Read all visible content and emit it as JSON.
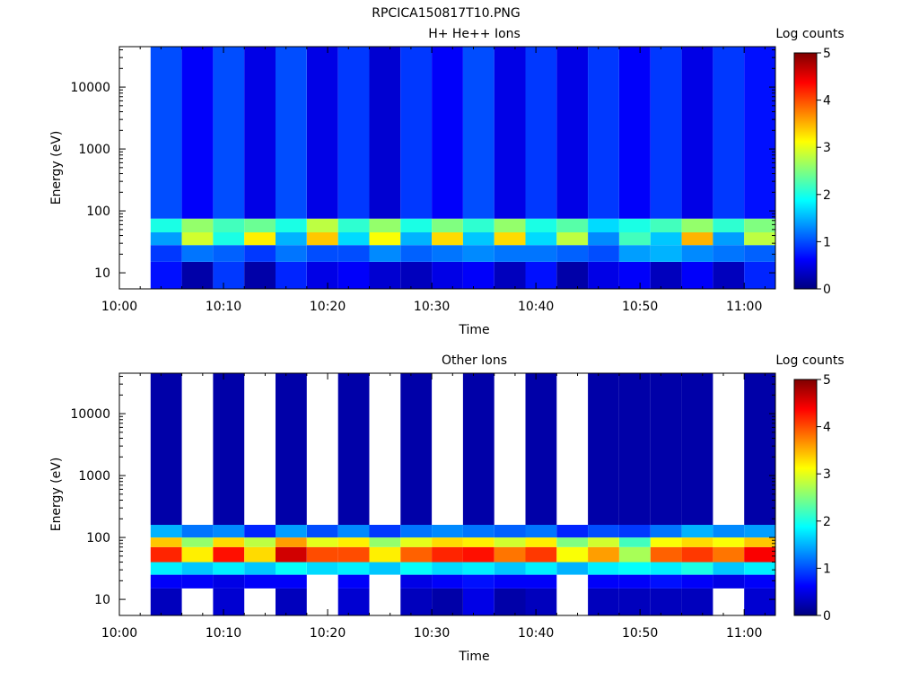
{
  "figure": {
    "title": "RPCICA150817T10.PNG"
  },
  "colors": {
    "background": "#ffffff",
    "axis": "#000000",
    "missing": "#ffffff"
  },
  "colorbar_ticks": [
    "0",
    "1",
    "2",
    "3",
    "4",
    "5"
  ],
  "chart_data": [
    {
      "type": "heatmap",
      "title": "H+ He++ Ions",
      "xlabel": "Time",
      "ylabel": "Energy (eV)",
      "colorbar_label": "Log counts",
      "y_scale": "log",
      "ylim": [
        5.5,
        45000
      ],
      "xlim": [
        "10:00",
        "11:03"
      ],
      "x_ticks": [
        "10:00",
        "10:10",
        "10:20",
        "10:30",
        "10:40",
        "10:50",
        "11:00"
      ],
      "y_ticks": [
        "10",
        "100",
        "1000",
        "10000"
      ],
      "clim": [
        0,
        5
      ],
      "colormap": "jet",
      "time_bins": [
        "10:03",
        "10:06",
        "10:09",
        "10:12",
        "10:15",
        "10:18",
        "10:21",
        "10:24",
        "10:27",
        "10:30",
        "10:33",
        "10:36",
        "10:39",
        "10:42",
        "10:45",
        "10:48",
        "10:51",
        "10:54",
        "10:57",
        "11:00",
        "11:03"
      ],
      "energy_bands_ev": [
        {
          "range": [
            5.5,
            15
          ],
          "values": [
            0.7,
            0.2,
            0.9,
            0.2,
            0.8,
            0.5,
            0.6,
            0.4,
            0.3,
            0.5,
            0.6,
            0.3,
            0.7,
            0.2,
            0.5,
            0.6,
            0.3,
            0.6,
            0.3,
            0.8
          ]
        },
        {
          "range": [
            15,
            28
          ],
          "values": [
            0.9,
            1.2,
            1.1,
            0.9,
            1.2,
            1.0,
            1.0,
            1.3,
            1.1,
            1.2,
            1.3,
            1.2,
            1.2,
            1.1,
            1.0,
            1.4,
            1.5,
            1.3,
            1.2,
            1.1
          ]
        },
        {
          "range": [
            28,
            45
          ],
          "values": [
            1.4,
            2.9,
            2.0,
            3.2,
            1.5,
            3.4,
            1.7,
            3.1,
            1.5,
            3.3,
            1.6,
            3.3,
            1.7,
            2.8,
            1.3,
            2.2,
            1.6,
            3.5,
            1.4,
            2.8
          ]
        },
        {
          "range": [
            45,
            75
          ],
          "values": [
            2.0,
            2.6,
            2.2,
            2.4,
            2.0,
            2.8,
            2.1,
            2.6,
            2.0,
            2.5,
            2.1,
            2.6,
            2.0,
            2.3,
            1.7,
            2.0,
            2.2,
            2.6,
            2.1,
            2.5
          ]
        },
        {
          "range": [
            75,
            45000
          ],
          "values": [
            1.0,
            0.6,
            1.0,
            0.5,
            1.0,
            0.5,
            0.9,
            0.4,
            0.9,
            0.6,
            1.0,
            0.5,
            0.9,
            0.5,
            0.9,
            0.6,
            0.9,
            0.5,
            0.9,
            0.7
          ]
        }
      ]
    },
    {
      "type": "heatmap",
      "title": "Other Ions",
      "xlabel": "Time",
      "ylabel": "Energy (eV)",
      "colorbar_label": "Log counts",
      "y_scale": "log",
      "ylim": [
        5.5,
        45000
      ],
      "xlim": [
        "10:00",
        "11:03"
      ],
      "x_ticks": [
        "10:00",
        "10:10",
        "10:20",
        "10:30",
        "10:40",
        "10:50",
        "11:00"
      ],
      "y_ticks": [
        "10",
        "100",
        "1000",
        "10000"
      ],
      "clim": [
        0,
        5
      ],
      "colormap": "jet",
      "time_bins": [
        "10:03",
        "10:06",
        "10:09",
        "10:12",
        "10:15",
        "10:18",
        "10:21",
        "10:24",
        "10:27",
        "10:30",
        "10:33",
        "10:36",
        "10:39",
        "10:42",
        "10:45",
        "10:48",
        "10:51",
        "10:54",
        "10:57",
        "11:00",
        "11:03"
      ],
      "energy_bands_ev": [
        {
          "range": [
            5.5,
            15
          ],
          "values": [
            0.3,
            null,
            0.4,
            null,
            0.3,
            null,
            0.4,
            null,
            0.3,
            0.2,
            0.5,
            0.2,
            0.3,
            null,
            0.3,
            0.3,
            0.3,
            0.3,
            null,
            0.4
          ]
        },
        {
          "range": [
            15,
            25
          ],
          "values": [
            0.6,
            0.6,
            0.5,
            0.6,
            0.6,
            null,
            0.6,
            null,
            0.5,
            0.6,
            0.7,
            0.6,
            0.6,
            null,
            0.6,
            0.6,
            0.7,
            0.6,
            0.5,
            0.6
          ]
        },
        {
          "range": [
            25,
            40
          ],
          "values": [
            1.8,
            1.6,
            1.8,
            1.6,
            1.9,
            1.7,
            1.8,
            1.6,
            1.9,
            1.7,
            1.8,
            1.6,
            1.8,
            1.5,
            1.8,
            1.9,
            1.8,
            2.0,
            1.6,
            1.8
          ]
        },
        {
          "range": [
            40,
            70
          ],
          "values": [
            4.2,
            3.2,
            4.3,
            3.3,
            4.6,
            4.0,
            4.0,
            3.2,
            3.9,
            4.2,
            4.3,
            3.8,
            4.1,
            3.1,
            3.6,
            2.7,
            3.9,
            4.1,
            3.8,
            4.4
          ]
        },
        {
          "range": [
            70,
            100
          ],
          "values": [
            3.4,
            2.6,
            3.3,
            2.8,
            3.6,
            3.0,
            3.2,
            2.6,
            3.0,
            3.3,
            3.2,
            2.9,
            3.2,
            2.5,
            2.9,
            2.2,
            3.1,
            3.3,
            3.1,
            3.4
          ]
        },
        {
          "range": [
            100,
            160
          ],
          "values": [
            1.5,
            1.2,
            1.3,
            0.8,
            1.4,
            1.0,
            1.3,
            0.9,
            1.2,
            1.3,
            1.2,
            1.1,
            1.2,
            0.8,
            1.0,
            0.9,
            1.2,
            1.5,
            1.3,
            1.4
          ]
        },
        {
          "range": [
            160,
            45000
          ],
          "values": [
            0.2,
            null,
            0.2,
            null,
            0.2,
            null,
            0.2,
            null,
            0.2,
            null,
            0.2,
            null,
            0.2,
            null,
            0.2,
            0.2,
            0.2,
            0.2,
            null,
            0.2
          ]
        }
      ]
    }
  ]
}
